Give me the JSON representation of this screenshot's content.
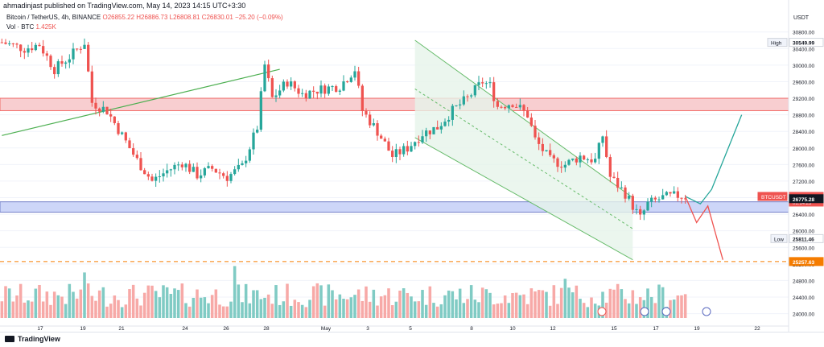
{
  "header": {
    "published": "ahmadinjast published on TradingView.com, May 14, 2023 14:15 UTC+3:30",
    "symbol": "Bitcoin / TetherUS, 4h, BINANCE",
    "ohlc": "O26855.22 H26886.73 L26808.81 C26830.01 −25.20 (−0.09%)",
    "vol_label": "Vol · BTC",
    "vol_value": "1.425K"
  },
  "footer": {
    "brand": "TradingView"
  },
  "colors": {
    "up": "#26a69a",
    "down": "#ef5350",
    "volume_up": "#80cbc4",
    "volume_down": "#f7a9a7",
    "resistance_zone": "#f7c6c8",
    "support_zone": "#c5cff7",
    "channel_fill": "#e6f4ea",
    "channel_line": "#66bb6a",
    "trendline": "#4caf50",
    "projection_up": "#26a69a",
    "projection_down": "#ef5350",
    "level_line": "#f57c00"
  },
  "chart_data": {
    "type": "candlestick",
    "title": "Bitcoin / TetherUS, 4h, BINANCE",
    "ylabel": "USDT",
    "ylim": [
      23700,
      31300
    ],
    "y_ticks": [
      "30800.00",
      "30400.00",
      "30000.00",
      "29600.00",
      "29200.00",
      "28800.00",
      "28400.00",
      "28000.00",
      "27600.00",
      "27200.00",
      "26800.00",
      "26400.00",
      "26000.00",
      "25600.00",
      "25200.00",
      "24800.00",
      "24400.00",
      "24000.00"
    ],
    "x_ticks": [
      "17",
      "19",
      "21",
      "24",
      "26",
      "28",
      "May",
      "3",
      "5",
      "8",
      "10",
      "12",
      "15",
      "17",
      "19",
      "22"
    ],
    "price_labels": [
      {
        "text": "30549.99",
        "tag": "High",
        "value": 30549.99
      },
      {
        "text": "26830.01",
        "tag": "BTCUSDT",
        "value": 26830.01,
        "sub": "01:14:23"
      },
      {
        "text": "26775.28",
        "value": 26775.28
      },
      {
        "text": "25811.46",
        "tag": "Low",
        "value": 25811.46
      },
      {
        "text": "25257.63",
        "value": 25257.63
      }
    ],
    "key_points": [
      [
        0,
        30550
      ],
      [
        6,
        30400
      ],
      [
        10,
        30500
      ],
      [
        14,
        29900
      ],
      [
        18,
        30200
      ],
      [
        22,
        30550
      ],
      [
        24,
        29100
      ],
      [
        28,
        28900
      ],
      [
        32,
        28300
      ],
      [
        36,
        27700
      ],
      [
        40,
        27200
      ],
      [
        44,
        27450
      ],
      [
        48,
        27650
      ],
      [
        52,
        27350
      ],
      [
        56,
        27500
      ],
      [
        60,
        27300
      ],
      [
        64,
        27550
      ],
      [
        68,
        28500
      ],
      [
        70,
        30000
      ],
      [
        72,
        29200
      ],
      [
        76,
        29600
      ],
      [
        80,
        29300
      ],
      [
        84,
        29400
      ],
      [
        90,
        29500
      ],
      [
        94,
        29900
      ],
      [
        96,
        28900
      ],
      [
        100,
        28400
      ],
      [
        104,
        27800
      ],
      [
        108,
        28000
      ],
      [
        112,
        28350
      ],
      [
        116,
        28500
      ],
      [
        120,
        28900
      ],
      [
        124,
        29200
      ],
      [
        128,
        29600
      ],
      [
        130,
        29500
      ],
      [
        132,
        29000
      ],
      [
        136,
        29100
      ],
      [
        140,
        28800
      ],
      [
        142,
        28200
      ],
      [
        146,
        27700
      ],
      [
        150,
        27600
      ],
      [
        154,
        27800
      ],
      [
        158,
        27700
      ],
      [
        160,
        28300
      ],
      [
        162,
        27300
      ],
      [
        166,
        26900
      ],
      [
        170,
        26300
      ],
      [
        172,
        26650
      ],
      [
        176,
        26800
      ],
      [
        180,
        26850
      ],
      [
        182,
        26830
      ]
    ],
    "zones": [
      {
        "name": "resistance",
        "y": [
          28900,
          29200
        ]
      },
      {
        "name": "support",
        "y": [
          26450,
          26700
        ]
      }
    ],
    "level_line": 25257.63
  }
}
